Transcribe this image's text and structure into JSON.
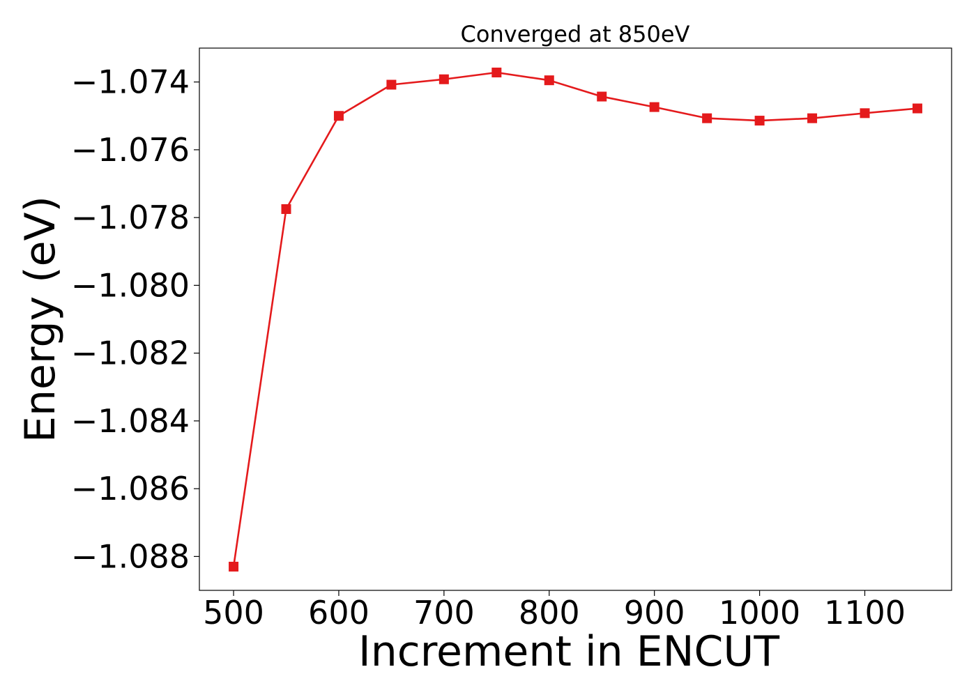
{
  "chart_data": {
    "type": "line",
    "title": "Converged at 850eV",
    "xlabel": "Increment in ENCUT",
    "ylabel": "Energy (eV)",
    "xlim": [
      467.5,
      1182.5
    ],
    "ylim": [
      -1.089,
      -1.073
    ],
    "x_ticks": [
      500,
      600,
      700,
      800,
      900,
      1000,
      1100
    ],
    "x_tick_labels": [
      "500",
      "600",
      "700",
      "800",
      "900",
      "1000",
      "1100"
    ],
    "y_ticks": [
      -1.074,
      -1.076,
      -1.078,
      -1.08,
      -1.082,
      -1.084,
      -1.086,
      -1.088
    ],
    "y_tick_labels": [
      "−1.074",
      "−1.076",
      "−1.078",
      "−1.080",
      "−1.082",
      "−1.084",
      "−1.086",
      "−1.088"
    ],
    "grid": false,
    "series": [
      {
        "color": "#e41a1c",
        "marker": "square",
        "x": [
          500,
          550,
          600,
          650,
          700,
          750,
          800,
          850,
          900,
          950,
          1000,
          1050,
          1100,
          1150
        ],
        "y": [
          -1.0883,
          -1.07775,
          -1.075,
          -1.07408,
          -1.07392,
          -1.07372,
          -1.07395,
          -1.07443,
          -1.07474,
          -1.07507,
          -1.07514,
          -1.07507,
          -1.07492,
          -1.07478
        ]
      }
    ]
  }
}
